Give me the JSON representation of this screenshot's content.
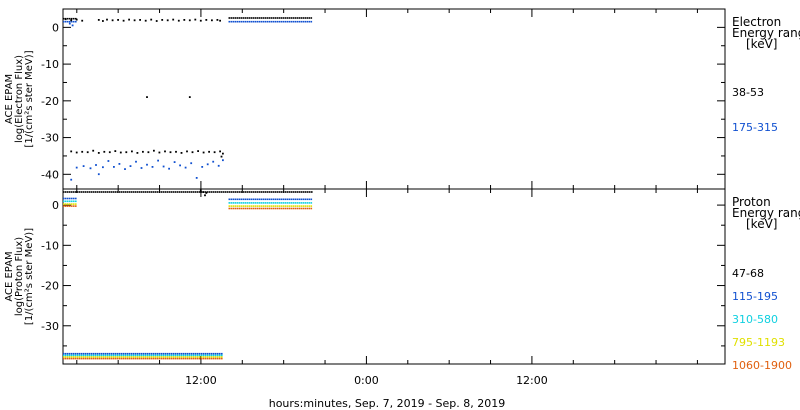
{
  "chart_data": [
    {
      "type": "scatter",
      "ylabel": [
        "ACE EPAM",
        "log(Electron Flux)",
        "[1/(cm²s ster MeV)]"
      ],
      "ylim": [
        -44,
        5
      ],
      "yticks": [
        0,
        -10,
        -20,
        -30,
        -40
      ],
      "legend_title": [
        "Electron",
        "Energy range",
        "[keV]"
      ],
      "legend_placement": "right",
      "series": [
        {
          "name": "38-53",
          "color": "#000000",
          "points": [
            [
              2.2,
              2.2
            ],
            [
              2.6,
              1.9
            ],
            [
              3.0,
              2.1
            ],
            [
              3.4,
              1.8
            ],
            [
              4.6,
              2.0
            ],
            [
              4.9,
              1.7
            ],
            [
              5.2,
              2.1
            ],
            [
              5.6,
              1.9
            ],
            [
              6.0,
              2.0
            ],
            [
              6.4,
              1.8
            ],
            [
              6.8,
              2.1
            ],
            [
              7.2,
              1.9
            ],
            [
              7.6,
              2.0
            ],
            [
              8.0,
              1.8
            ],
            [
              8.4,
              2.1
            ],
            [
              8.8,
              1.7
            ],
            [
              9.2,
              2.0
            ],
            [
              9.6,
              1.9
            ],
            [
              10.0,
              2.1
            ],
            [
              10.4,
              1.8
            ],
            [
              10.8,
              2.0
            ],
            [
              11.2,
              1.9
            ],
            [
              11.6,
              2.1
            ],
            [
              12.0,
              1.8
            ],
            [
              12.4,
              2.0
            ],
            [
              12.8,
              1.9
            ],
            [
              13.2,
              2.0
            ],
            [
              13.4,
              1.8
            ],
            [
              8.1,
              -19.0
            ],
            [
              11.2,
              -19.0
            ],
            [
              2.6,
              -33.8
            ],
            [
              3.0,
              -34.1
            ],
            [
              3.4,
              -33.9
            ],
            [
              3.8,
              -34.0
            ],
            [
              4.2,
              -33.6
            ],
            [
              4.6,
              -34.2
            ],
            [
              5.0,
              -33.9
            ],
            [
              5.4,
              -34.0
            ],
            [
              5.8,
              -33.7
            ],
            [
              6.2,
              -34.1
            ],
            [
              6.6,
              -34.0
            ],
            [
              7.0,
              -33.8
            ],
            [
              7.4,
              -34.2
            ],
            [
              7.8,
              -33.9
            ],
            [
              8.2,
              -34.0
            ],
            [
              8.6,
              -33.6
            ],
            [
              9.0,
              -34.1
            ],
            [
              9.4,
              -33.8
            ],
            [
              9.8,
              -34.0
            ],
            [
              10.2,
              -33.9
            ],
            [
              10.6,
              -34.2
            ],
            [
              11.0,
              -33.8
            ],
            [
              11.4,
              -34.0
            ],
            [
              11.8,
              -33.7
            ],
            [
              12.2,
              -34.1
            ],
            [
              12.6,
              -33.9
            ],
            [
              13.0,
              -34.0
            ],
            [
              13.4,
              -33.8
            ],
            [
              13.6,
              -34.4
            ],
            [
              13.5,
              -35.2
            ]
          ]
        },
        {
          "name": "175-315",
          "color": "#1050d0",
          "points": [
            [
              2.5,
              1.0
            ],
            [
              2.7,
              0.5
            ],
            [
              2.6,
              -41.5
            ],
            [
              3.0,
              -38.2
            ],
            [
              3.5,
              -37.8
            ],
            [
              4.0,
              -38.4
            ],
            [
              4.4,
              -37.5
            ],
            [
              4.6,
              -40.0
            ],
            [
              4.9,
              -38.1
            ],
            [
              5.3,
              -36.4
            ],
            [
              5.7,
              -38.0
            ],
            [
              6.1,
              -37.2
            ],
            [
              6.5,
              -38.6
            ],
            [
              6.9,
              -37.8
            ],
            [
              7.3,
              -36.6
            ],
            [
              7.7,
              -38.3
            ],
            [
              8.1,
              -37.4
            ],
            [
              8.5,
              -38.0
            ],
            [
              8.9,
              -36.3
            ],
            [
              9.3,
              -37.9
            ],
            [
              9.7,
              -38.5
            ],
            [
              10.1,
              -36.7
            ],
            [
              10.5,
              -37.6
            ],
            [
              10.9,
              -38.2
            ],
            [
              11.3,
              -37.0
            ],
            [
              11.7,
              -41.0
            ],
            [
              12.1,
              -38.0
            ],
            [
              12.5,
              -37.3
            ],
            [
              12.9,
              -36.6
            ],
            [
              13.3,
              -37.7
            ],
            [
              13.6,
              -36.2
            ]
          ]
        }
      ],
      "bands": [
        {
          "series": "38-53",
          "segments": [
            [
              2.0,
              3.0,
              2.3
            ],
            [
              14.0,
              20.0,
              2.5
            ]
          ]
        },
        {
          "series": "175-315",
          "segments": [
            [
              2.0,
              3.0,
              1.5
            ],
            [
              14.0,
              20.0,
              1.5
            ]
          ]
        }
      ]
    },
    {
      "type": "scatter",
      "ylabel": [
        "ACE EPAM",
        "log(Proton Flux)",
        "[1/(cm²s ster MeV)]"
      ],
      "ylim": [
        -39.5,
        4
      ],
      "yticks": [
        0,
        -10,
        -20,
        -30
      ],
      "legend_title": [
        "Proton",
        "Energy range",
        "[keV]"
      ],
      "legend_placement": "right",
      "series": [
        {
          "name": "47-68",
          "color": "#000000",
          "points": [
            [
              12.0,
              3.6
            ],
            [
              12.2,
              3.2
            ],
            [
              12.3,
              2.4
            ],
            [
              12.4,
              3.0
            ]
          ]
        },
        {
          "name": "115-195",
          "color": "#1050d0",
          "points": []
        },
        {
          "name": "310-580",
          "color": "#10d0e0",
          "points": []
        },
        {
          "name": "795-1193",
          "color": "#e0e000",
          "points": []
        },
        {
          "name": "1060-1900",
          "color": "#e06010",
          "points": []
        }
      ],
      "bands": [
        {
          "series": "47-68",
          "segments": [
            [
              2.0,
              20.0,
              3.2
            ]
          ]
        },
        {
          "series": "115-195",
          "segments": [
            [
              2.0,
              3.0,
              1.6
            ],
            [
              14.0,
              20.0,
              1.4
            ],
            [
              2.0,
              13.5,
              -37.0
            ]
          ]
        },
        {
          "series": "310-580",
          "segments": [
            [
              2.0,
              3.0,
              0.9
            ],
            [
              14.0,
              20.0,
              0.5
            ],
            [
              2.0,
              13.5,
              -37.4
            ]
          ]
        },
        {
          "series": "795-1193",
          "segments": [
            [
              2.0,
              3.0,
              0.2
            ],
            [
              14.0,
              20.0,
              -0.3
            ],
            [
              2.0,
              13.5,
              -37.8
            ]
          ]
        },
        {
          "series": "1060-1900",
          "segments": [
            [
              2.0,
              3.0,
              -0.3
            ],
            [
              14.0,
              20.0,
              -0.9
            ],
            [
              2.0,
              13.5,
              -38.2
            ]
          ]
        }
      ]
    }
  ],
  "x_axis": {
    "range_hours": [
      2,
      50
    ],
    "tick_labels": [
      {
        "hour": 12,
        "label": "12:00"
      },
      {
        "hour": 24,
        "label": "0:00"
      },
      {
        "hour": 36,
        "label": "12:00"
      }
    ],
    "minor_tick_hours": [
      3,
      6,
      9,
      15,
      18,
      21,
      27,
      30,
      33,
      39,
      42,
      45,
      48
    ],
    "title": "hours:minutes, Sep.  7, 2019 - Sep.  8, 2019"
  }
}
